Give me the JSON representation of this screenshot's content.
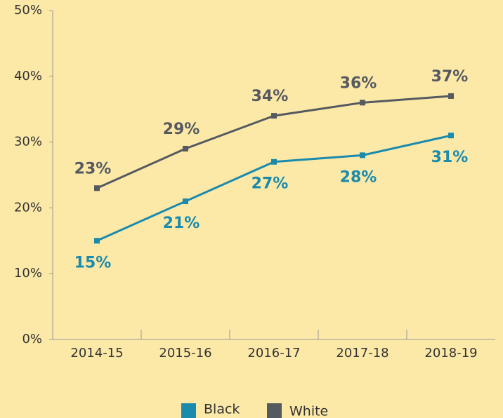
{
  "chart_data": {
    "type": "line",
    "categories": [
      "2014-15",
      "2015-16",
      "2016-17",
      "2017-18",
      "2018-19"
    ],
    "series": [
      {
        "name": "Black",
        "color": "#1a8aad",
        "values": [
          15,
          21,
          27,
          28,
          31
        ],
        "value_labels": [
          "15%",
          "21%",
          "27%",
          "28%",
          "31%"
        ]
      },
      {
        "name": "White",
        "color": "#555960",
        "values": [
          23,
          29,
          34,
          36,
          37
        ],
        "value_labels": [
          "23%",
          "29%",
          "34%",
          "36%",
          "37%"
        ]
      }
    ],
    "ylim": [
      0,
      50
    ],
    "yticks": [
      {
        "value": 0,
        "label": "0%"
      },
      {
        "value": 10,
        "label": "10%"
      },
      {
        "value": 20,
        "label": "20%"
      },
      {
        "value": 30,
        "label": "30%"
      },
      {
        "value": 40,
        "label": "40%"
      },
      {
        "value": 50,
        "label": "50%"
      }
    ]
  }
}
